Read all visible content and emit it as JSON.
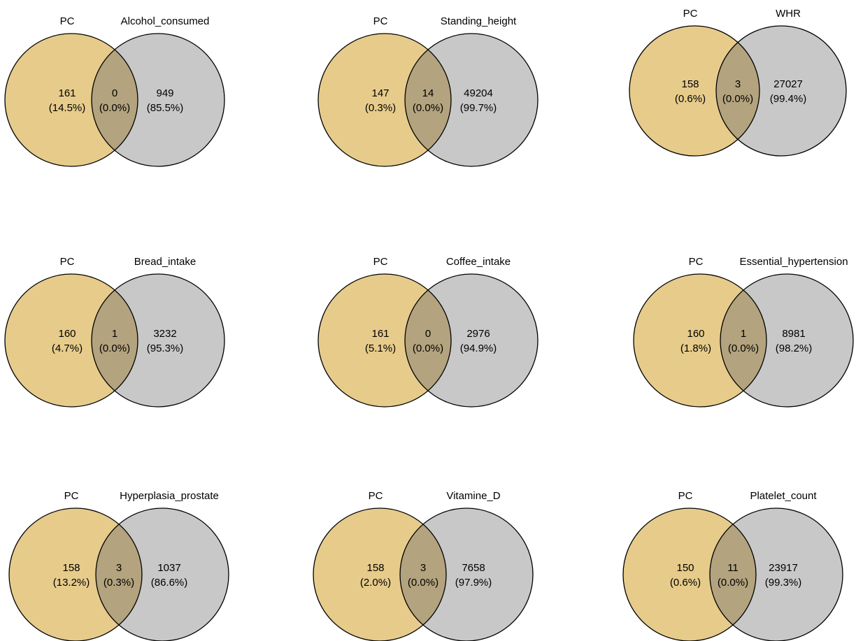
{
  "colors": {
    "left_fill": "#e6cb8b",
    "right_fill": "#c8c8c8",
    "overlap_fill": "#b3a37e",
    "stroke": "#000000"
  },
  "diagrams": [
    {
      "left_set": "PC",
      "right_set": "Alcohol_consumed",
      "left_only": {
        "count": "161",
        "pct": "(14.5%)"
      },
      "overlap": {
        "count": "0",
        "pct": "(0.0%)"
      },
      "right_only": {
        "count": "949",
        "pct": "(85.5%)"
      }
    },
    {
      "left_set": "PC",
      "right_set": "Standing_height",
      "left_only": {
        "count": "147",
        "pct": "(0.3%)"
      },
      "overlap": {
        "count": "14",
        "pct": "(0.0%)"
      },
      "right_only": {
        "count": "49204",
        "pct": "(99.7%)"
      }
    },
    {
      "left_set": "PC",
      "right_set": "WHR",
      "left_only": {
        "count": "158",
        "pct": "(0.6%)"
      },
      "overlap": {
        "count": "3",
        "pct": "(0.0%)"
      },
      "right_only": {
        "count": "27027",
        "pct": "(99.4%)"
      }
    },
    {
      "left_set": "PC",
      "right_set": "Bread_intake",
      "left_only": {
        "count": "160",
        "pct": "(4.7%)"
      },
      "overlap": {
        "count": "1",
        "pct": "(0.0%)"
      },
      "right_only": {
        "count": "3232",
        "pct": "(95.3%)"
      }
    },
    {
      "left_set": "PC",
      "right_set": "Coffee_intake",
      "left_only": {
        "count": "161",
        "pct": "(5.1%)"
      },
      "overlap": {
        "count": "0",
        "pct": "(0.0%)"
      },
      "right_only": {
        "count": "2976",
        "pct": "(94.9%)"
      }
    },
    {
      "left_set": "PC",
      "right_set": "Essential_hypertension",
      "left_only": {
        "count": "160",
        "pct": "(1.8%)"
      },
      "overlap": {
        "count": "1",
        "pct": "(0.0%)"
      },
      "right_only": {
        "count": "8981",
        "pct": "(98.2%)"
      }
    },
    {
      "left_set": "PC",
      "right_set": "Hyperplasia_prostate",
      "left_only": {
        "count": "158",
        "pct": "(13.2%)"
      },
      "overlap": {
        "count": "3",
        "pct": "(0.3%)"
      },
      "right_only": {
        "count": "1037",
        "pct": "(86.6%)"
      }
    },
    {
      "left_set": "PC",
      "right_set": "Vitamine_D",
      "left_only": {
        "count": "158",
        "pct": "(2.0%)"
      },
      "overlap": {
        "count": "3",
        "pct": "(0.0%)"
      },
      "right_only": {
        "count": "7658",
        "pct": "(97.9%)"
      }
    },
    {
      "left_set": "PC",
      "right_set": "Platelet_count",
      "left_only": {
        "count": "150",
        "pct": "(0.6%)"
      },
      "overlap": {
        "count": "11",
        "pct": "(0.0%)"
      },
      "right_only": {
        "count": "23917",
        "pct": "(99.3%)"
      }
    }
  ]
}
